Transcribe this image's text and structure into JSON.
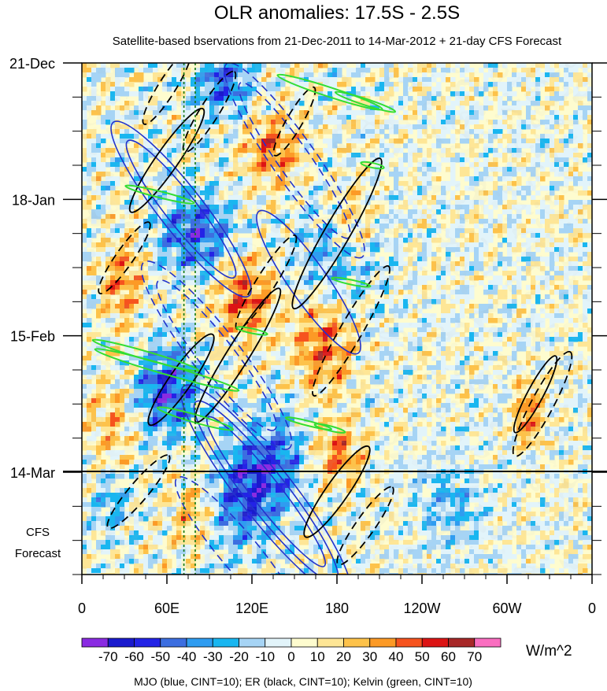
{
  "chart_data": {
    "type": "heatmap",
    "title": "OLR anomalies: 17.5S - 2.5S",
    "subtitle": "Satellite-based bservations from 21-Dec-2011 to 14-Mar-2012 + 21-day CFS Forecast",
    "x_ticks": [
      "0",
      "60E",
      "120E",
      "180",
      "120W",
      "60W",
      "0"
    ],
    "x_range_deg_east": [
      0,
      360
    ],
    "y_ticks": [
      "21-Dec",
      "18-Jan",
      "15-Feb",
      "14-Mar"
    ],
    "y_tick_days": [
      0,
      28,
      56,
      84
    ],
    "y_range_days": [
      0,
      105
    ],
    "forecast_label_line1": "CFS",
    "forecast_label_line2": "Forecast",
    "observation_end": "14-Mar",
    "colorbar": {
      "levels": [
        -70,
        -60,
        -50,
        -40,
        -30,
        -20,
        -10,
        0,
        10,
        20,
        30,
        40,
        50,
        60,
        70
      ],
      "labels": [
        "-70",
        "-60",
        "-50",
        "-40",
        "-30",
        "-20",
        "-10",
        "0",
        "10",
        "20",
        "30",
        "40",
        "50",
        "60",
        "70"
      ],
      "colors": [
        "#8a2be2",
        "#1a1acd",
        "#2323e6",
        "#3c6ee0",
        "#2f9cf0",
        "#19b6f0",
        "#a6d4f5",
        "#e2f4fa",
        "#fefccf",
        "#fee696",
        "#fdc24a",
        "#fc9a26",
        "#f6531e",
        "#dc1414",
        "#a72828",
        "#fa6ec0"
      ],
      "units": "W/m^2"
    },
    "contour_legend": "MJO (blue, CINT=10); ER (black, CINT=10); Kelvin (green, CINT=10)",
    "vertical_reference_lines_deg_east": [
      72,
      80
    ]
  }
}
